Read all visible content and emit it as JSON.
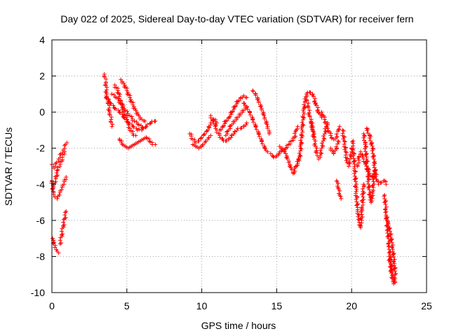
{
  "chart_data": {
    "type": "scatter",
    "title": "Day 022 of 2025, Sidereal Day-to-day VTEC variation (SDTVAR) for receiver fern",
    "xlabel": "GPS time / hours",
    "ylabel": "SDTVAR / TECUs",
    "xlim": [
      0,
      25
    ],
    "ylim": [
      -10,
      4
    ],
    "xticks": [
      0,
      5,
      10,
      15,
      20,
      25
    ],
    "yticks": [
      -10,
      -8,
      -6,
      -4,
      -2,
      0,
      2,
      4
    ],
    "grid": true,
    "marker": "plus",
    "color": "#ff0000",
    "segments": [
      [
        [
          0.0,
          -2.9
        ],
        [
          0.15,
          -3.1
        ],
        [
          0.3,
          -2.8
        ],
        [
          0.45,
          -2.6
        ],
        [
          0.6,
          -2.3
        ],
        [
          0.75,
          -2.1
        ],
        [
          0.9,
          -1.8
        ],
        [
          1.0,
          -1.7
        ]
      ],
      [
        [
          0.0,
          -3.8
        ],
        [
          0.1,
          -4.4
        ],
        [
          0.2,
          -4.7
        ],
        [
          0.35,
          -4.8
        ],
        [
          0.5,
          -4.6
        ],
        [
          0.65,
          -4.3
        ],
        [
          0.8,
          -4.0
        ],
        [
          0.95,
          -3.6
        ]
      ],
      [
        [
          0.1,
          -4.1
        ],
        [
          0.25,
          -3.7
        ],
        [
          0.4,
          -3.2
        ],
        [
          0.55,
          -2.9
        ],
        [
          0.7,
          -2.5
        ],
        [
          0.85,
          -2.2
        ]
      ],
      [
        [
          0.05,
          -7.0
        ],
        [
          0.2,
          -7.5
        ],
        [
          0.35,
          -7.7
        ],
        [
          0.45,
          -7.8
        ]
      ],
      [
        [
          0.55,
          -7.3
        ],
        [
          0.65,
          -6.8
        ],
        [
          0.75,
          -6.3
        ],
        [
          0.85,
          -5.9
        ],
        [
          0.95,
          -5.5
        ]
      ],
      [
        [
          3.5,
          2.1
        ],
        [
          3.6,
          1.6
        ],
        [
          3.65,
          1.0
        ],
        [
          3.75,
          0.6
        ],
        [
          3.85,
          0.0
        ],
        [
          3.95,
          -0.4
        ],
        [
          4.0,
          -0.8
        ]
      ],
      [
        [
          3.6,
          0.8
        ],
        [
          3.9,
          0.5
        ],
        [
          4.2,
          0.2
        ],
        [
          4.5,
          0.0
        ],
        [
          4.8,
          -0.3
        ],
        [
          5.1,
          -0.6
        ],
        [
          5.4,
          -0.8
        ],
        [
          5.7,
          -1.0
        ],
        [
          6.0,
          -1.0
        ],
        [
          6.3,
          -0.8
        ],
        [
          6.6,
          -0.6
        ],
        [
          6.9,
          -0.5
        ]
      ],
      [
        [
          4.0,
          1.0
        ],
        [
          4.3,
          0.8
        ],
        [
          4.6,
          0.5
        ],
        [
          4.9,
          0.1
        ],
        [
          5.2,
          -0.2
        ],
        [
          5.5,
          -0.5
        ],
        [
          5.8,
          -0.7
        ],
        [
          6.1,
          -0.9
        ]
      ],
      [
        [
          4.6,
          1.8
        ],
        [
          4.8,
          1.6
        ],
        [
          5.0,
          1.2
        ],
        [
          5.2,
          0.8
        ],
        [
          5.4,
          0.4
        ],
        [
          5.6,
          0.1
        ],
        [
          5.8,
          -0.2
        ],
        [
          6.0,
          -0.4
        ],
        [
          6.2,
          -0.5
        ]
      ],
      [
        [
          4.2,
          1.5
        ],
        [
          4.4,
          1.2
        ],
        [
          4.6,
          0.6
        ],
        [
          4.8,
          0.0
        ],
        [
          5.0,
          -0.4
        ],
        [
          5.2,
          -0.9
        ],
        [
          5.4,
          -1.2
        ],
        [
          5.6,
          -1.3
        ]
      ],
      [
        [
          4.5,
          -1.5
        ],
        [
          4.7,
          -1.8
        ],
        [
          4.9,
          -1.9
        ],
        [
          5.1,
          -2.0
        ],
        [
          5.3,
          -1.9
        ],
        [
          5.5,
          -1.8
        ],
        [
          5.7,
          -1.7
        ],
        [
          5.9,
          -1.6
        ],
        [
          6.1,
          -1.5
        ],
        [
          6.3,
          -1.4
        ],
        [
          6.5,
          -1.6
        ],
        [
          6.7,
          -1.8
        ],
        [
          6.9,
          -1.8
        ]
      ],
      [
        [
          9.2,
          -1.2
        ],
        [
          9.4,
          -1.5
        ],
        [
          9.6,
          -1.7
        ],
        [
          9.8,
          -1.6
        ],
        [
          10.0,
          -1.4
        ],
        [
          10.2,
          -1.2
        ],
        [
          10.4,
          -1.0
        ],
        [
          10.6,
          -0.6
        ],
        [
          10.8,
          -0.4
        ],
        [
          11.0,
          -0.6
        ]
      ],
      [
        [
          9.4,
          -1.8
        ],
        [
          9.6,
          -1.9
        ],
        [
          9.8,
          -2.0
        ],
        [
          10.0,
          -1.9
        ],
        [
          10.2,
          -1.7
        ],
        [
          10.4,
          -1.5
        ],
        [
          10.6,
          -1.3
        ]
      ],
      [
        [
          10.6,
          -0.2
        ],
        [
          10.8,
          -0.5
        ],
        [
          11.0,
          -1.0
        ],
        [
          11.2,
          -1.3
        ],
        [
          11.4,
          -1.5
        ],
        [
          11.6,
          -1.6
        ],
        [
          11.8,
          -1.5
        ],
        [
          12.0,
          -1.3
        ],
        [
          12.2,
          -1.1
        ],
        [
          12.4,
          -0.9
        ],
        [
          12.6,
          -0.9
        ],
        [
          12.8,
          -0.8
        ],
        [
          13.0,
          -0.6
        ]
      ],
      [
        [
          11.2,
          -1.0
        ],
        [
          11.4,
          -0.8
        ],
        [
          11.6,
          -0.5
        ],
        [
          11.8,
          -0.3
        ],
        [
          12.0,
          0.0
        ],
        [
          12.2,
          0.3
        ],
        [
          12.4,
          0.6
        ],
        [
          12.6,
          0.8
        ],
        [
          12.8,
          0.9
        ],
        [
          13.0,
          0.8
        ]
      ],
      [
        [
          11.6,
          -1.3
        ],
        [
          11.8,
          -1.0
        ],
        [
          12.0,
          -0.7
        ],
        [
          12.2,
          -0.5
        ],
        [
          12.4,
          -0.3
        ],
        [
          12.6,
          -0.1
        ],
        [
          12.8,
          0.1
        ],
        [
          13.0,
          0.3
        ]
      ],
      [
        [
          12.8,
          0.5
        ],
        [
          13.0,
          0.3
        ],
        [
          13.2,
          0.0
        ],
        [
          13.4,
          -0.4
        ],
        [
          13.6,
          -0.8
        ],
        [
          13.8,
          -1.2
        ],
        [
          14.0,
          -1.6
        ],
        [
          14.2,
          -2.0
        ],
        [
          14.4,
          -2.2
        ]
      ],
      [
        [
          13.4,
          1.2
        ],
        [
          13.6,
          1.0
        ],
        [
          13.8,
          0.6
        ],
        [
          14.0,
          0.2
        ],
        [
          14.2,
          -0.3
        ],
        [
          14.4,
          -0.8
        ],
        [
          14.5,
          -1.2
        ]
      ],
      [
        [
          14.6,
          -2.3
        ],
        [
          14.8,
          -2.5
        ],
        [
          15.0,
          -2.4
        ],
        [
          15.2,
          -2.2
        ],
        [
          15.4,
          -2.0
        ],
        [
          15.6,
          -2.3
        ],
        [
          15.8,
          -2.8
        ],
        [
          16.0,
          -3.2
        ],
        [
          16.1,
          -3.4
        ],
        [
          16.3,
          -3.0
        ],
        [
          16.5,
          -2.6
        ]
      ],
      [
        [
          15.2,
          -1.9
        ],
        [
          15.4,
          -2.1
        ],
        [
          15.6,
          -2.0
        ],
        [
          15.8,
          -1.8
        ],
        [
          16.0,
          -1.6
        ],
        [
          16.2,
          -1.4
        ],
        [
          16.3,
          -1.0
        ],
        [
          16.4,
          -0.8
        ]
      ],
      [
        [
          16.5,
          -2.7
        ],
        [
          16.6,
          -2.0
        ],
        [
          16.7,
          -1.0
        ],
        [
          16.8,
          0.0
        ],
        [
          16.9,
          0.6
        ],
        [
          17.0,
          1.0
        ],
        [
          17.2,
          1.1
        ],
        [
          17.4,
          1.0
        ],
        [
          17.6,
          0.5
        ],
        [
          17.8,
          0.0
        ],
        [
          18.0,
          -0.3
        ]
      ],
      [
        [
          17.0,
          0.7
        ],
        [
          17.1,
          0.3
        ],
        [
          17.2,
          -0.2
        ],
        [
          17.3,
          -0.6
        ],
        [
          17.4,
          -1.0
        ],
        [
          17.5,
          -1.4
        ]
      ],
      [
        [
          17.3,
          -0.5
        ],
        [
          17.4,
          -1.0
        ],
        [
          17.5,
          -1.5
        ],
        [
          17.6,
          -1.9
        ],
        [
          17.7,
          -2.4
        ],
        [
          17.8,
          -2.6
        ],
        [
          17.9,
          -2.4
        ],
        [
          18.0,
          -2.0
        ],
        [
          18.1,
          -1.6
        ],
        [
          18.2,
          -1.2
        ],
        [
          18.3,
          -0.8
        ],
        [
          18.4,
          -0.6
        ]
      ],
      [
        [
          18.0,
          0.0
        ],
        [
          18.2,
          -0.4
        ],
        [
          18.4,
          -0.9
        ],
        [
          18.6,
          -1.3
        ],
        [
          18.8,
          -1.5
        ],
        [
          19.0,
          -1.4
        ],
        [
          19.1,
          -1.0
        ],
        [
          19.2,
          -0.8
        ]
      ],
      [
        [
          18.6,
          -2.0
        ],
        [
          18.8,
          -2.3
        ],
        [
          19.0,
          -2.0
        ],
        [
          19.1,
          -1.6
        ]
      ],
      [
        [
          19.0,
          -3.8
        ],
        [
          19.1,
          -4.2
        ],
        [
          19.2,
          -4.6
        ],
        [
          19.3,
          -4.8
        ]
      ],
      [
        [
          19.4,
          -1.0
        ],
        [
          19.5,
          -1.6
        ],
        [
          19.6,
          -2.2
        ],
        [
          19.7,
          -2.8
        ],
        [
          19.8,
          -3.0
        ],
        [
          19.9,
          -2.6
        ],
        [
          20.0,
          -2.2
        ],
        [
          20.1,
          -1.6
        ]
      ],
      [
        [
          20.1,
          -2.0
        ],
        [
          20.2,
          -3.0
        ],
        [
          20.3,
          -4.4
        ],
        [
          20.4,
          -5.4
        ],
        [
          20.5,
          -6.0
        ],
        [
          20.6,
          -6.4
        ],
        [
          20.7,
          -5.4
        ],
        [
          20.8,
          -4.0
        ]
      ],
      [
        [
          20.4,
          -3.0
        ],
        [
          20.5,
          -2.5
        ],
        [
          20.6,
          -2.2
        ],
        [
          20.8,
          -2.6
        ],
        [
          21.0,
          -3.0
        ],
        [
          21.2,
          -3.4
        ],
        [
          21.4,
          -3.6
        ],
        [
          21.6,
          -3.2
        ]
      ],
      [
        [
          20.8,
          -1.2
        ],
        [
          20.9,
          -1.8
        ],
        [
          21.0,
          -2.6
        ],
        [
          21.1,
          -3.6
        ],
        [
          21.2,
          -4.6
        ],
        [
          21.3,
          -5.0
        ],
        [
          21.4,
          -4.4
        ],
        [
          21.5,
          -3.4
        ]
      ],
      [
        [
          21.0,
          -0.9
        ],
        [
          21.2,
          -1.3
        ],
        [
          21.4,
          -2.0
        ],
        [
          21.5,
          -2.8
        ],
        [
          21.6,
          -3.4
        ],
        [
          21.7,
          -3.8
        ],
        [
          21.8,
          -4.0
        ],
        [
          22.0,
          -3.9
        ],
        [
          22.2,
          -3.8
        ],
        [
          22.3,
          -4.0
        ]
      ],
      [
        [
          22.2,
          -4.6
        ],
        [
          22.3,
          -5.5
        ],
        [
          22.4,
          -6.5
        ],
        [
          22.5,
          -7.4
        ],
        [
          22.6,
          -8.2
        ],
        [
          22.7,
          -8.8
        ],
        [
          22.8,
          -9.2
        ],
        [
          22.9,
          -9.4
        ]
      ],
      [
        [
          22.3,
          -5.8
        ],
        [
          22.45,
          -6.2
        ],
        [
          22.6,
          -6.8
        ],
        [
          22.75,
          -7.6
        ],
        [
          22.85,
          -8.4
        ],
        [
          22.9,
          -9.0
        ]
      ],
      [
        [
          22.5,
          -8.0
        ],
        [
          22.6,
          -8.6
        ],
        [
          22.7,
          -9.2
        ],
        [
          22.8,
          -9.5
        ],
        [
          22.9,
          -9.2
        ]
      ]
    ]
  }
}
